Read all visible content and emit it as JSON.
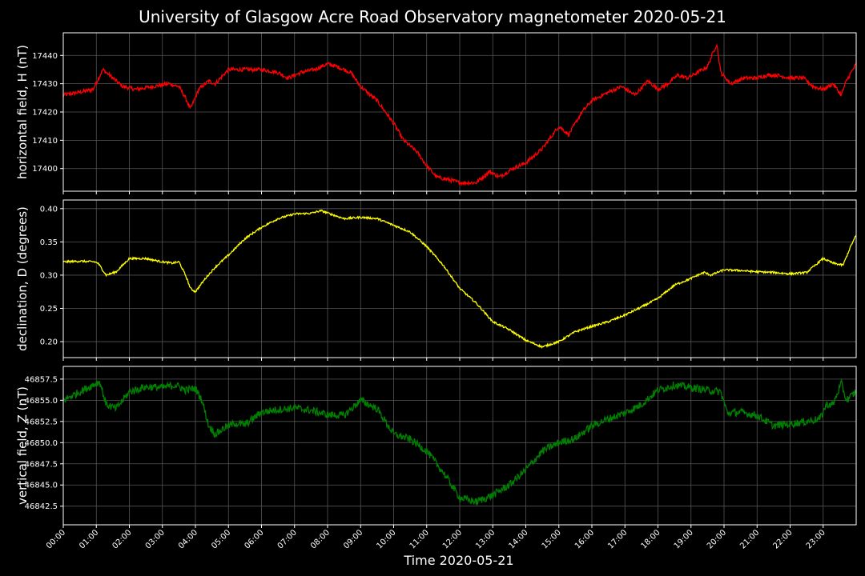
{
  "figure": {
    "title": "University of Glasgow Acre Road Observatory magnetometer 2020-05-21",
    "xlabel": "Time 2020-05-21",
    "background": "#000000",
    "grid_color": "#555555"
  },
  "chart_data": [
    {
      "type": "line",
      "ylabel": "horizontal field, H (nT)",
      "color": "#ff0000",
      "grid": true,
      "ylim": [
        17392,
        17448
      ],
      "yticks": [
        17400,
        17410,
        17420,
        17430,
        17440
      ],
      "ytick_labels": [
        "17400",
        "17410",
        "17420",
        "17430",
        "17440"
      ],
      "x_hours": [
        0,
        0.5,
        0.9,
        1.2,
        1.5,
        1.8,
        2.2,
        2.7,
        3.2,
        3.5,
        3.7,
        3.85,
        4.1,
        4.4,
        4.6,
        5,
        5.5,
        6,
        6.5,
        6.8,
        7.2,
        7.6,
        8,
        8.3,
        8.7,
        9,
        9.5,
        10,
        10.3,
        10.7,
        11,
        11.3,
        11.7,
        12,
        12.5,
        12.9,
        13.2,
        13.6,
        14,
        14.5,
        15,
        15.3,
        15.7,
        16,
        16.5,
        16.9,
        17.3,
        17.7,
        18,
        18.3,
        18.6,
        18.9,
        19.2,
        19.5,
        19.7,
        19.78,
        19.9,
        20.2,
        20.6,
        21,
        21.3,
        21.6,
        22,
        22.4,
        22.7,
        23,
        23.3,
        23.55,
        23.7,
        23.85,
        24
      ],
      "values": [
        17426,
        17427,
        17428,
        17435,
        17432,
        17429,
        17428,
        17429,
        17430,
        17429,
        17425,
        17421,
        17428,
        17431,
        17430,
        17435,
        17435,
        17435,
        17434,
        17432,
        17434,
        17435,
        17437,
        17436,
        17434,
        17429,
        17424,
        17416,
        17410,
        17406,
        17401,
        17397,
        17396,
        17395,
        17395,
        17399,
        17397,
        17400,
        17402,
        17407,
        17415,
        17412,
        17420,
        17424,
        17427,
        17429,
        17426,
        17431,
        17428,
        17430,
        17433,
        17432,
        17434,
        17436,
        17442,
        17444,
        17434,
        17430,
        17432,
        17432,
        17433,
        17433,
        17432,
        17432,
        17429,
        17428,
        17430,
        17426,
        17431,
        17434,
        17437
      ],
      "noise": 0.7
    },
    {
      "type": "line",
      "ylabel": "declination, D (degrees)",
      "color": "#ffff00",
      "grid": true,
      "ylim": [
        0.176,
        0.413
      ],
      "yticks": [
        0.2,
        0.25,
        0.3,
        0.35,
        0.4
      ],
      "ytick_labels": [
        "0.20",
        "0.25",
        "0.30",
        "0.35",
        "0.40"
      ],
      "x_hours": [
        0,
        0.5,
        0.95,
        1.05,
        1.3,
        1.6,
        2,
        2.5,
        3,
        3.3,
        3.5,
        3.7,
        3.85,
        4.0,
        4.3,
        4.6,
        5,
        5.5,
        6,
        6.5,
        7,
        7.5,
        7.8,
        8.2,
        8.5,
        9,
        9.5,
        10,
        10.5,
        11,
        11.5,
        12,
        12.5,
        13,
        13.5,
        14,
        14.5,
        15,
        15.5,
        16,
        16.5,
        17,
        17.5,
        18,
        18.5,
        19,
        19.2,
        19.4,
        19.6,
        20,
        20.5,
        21,
        21.5,
        22,
        22.5,
        23,
        23.3,
        23.6,
        23.85,
        24
      ],
      "values": [
        0.32,
        0.321,
        0.32,
        0.318,
        0.3,
        0.305,
        0.325,
        0.325,
        0.32,
        0.318,
        0.32,
        0.3,
        0.28,
        0.275,
        0.295,
        0.312,
        0.33,
        0.355,
        0.372,
        0.385,
        0.392,
        0.393,
        0.397,
        0.39,
        0.385,
        0.387,
        0.385,
        0.375,
        0.365,
        0.343,
        0.315,
        0.28,
        0.258,
        0.23,
        0.218,
        0.202,
        0.192,
        0.2,
        0.215,
        0.223,
        0.23,
        0.24,
        0.252,
        0.265,
        0.285,
        0.295,
        0.3,
        0.304,
        0.3,
        0.308,
        0.307,
        0.305,
        0.304,
        0.302,
        0.304,
        0.325,
        0.318,
        0.315,
        0.345,
        0.36
      ],
      "noise": 0.0015
    },
    {
      "type": "line",
      "ylabel": "vertical field, Z (nT)",
      "color": "#008000",
      "grid": true,
      "ylim": [
        46840.3,
        46859.0
      ],
      "yticks": [
        46842.5,
        46845.0,
        46847.5,
        46850.0,
        46852.5,
        46855.0,
        46857.5
      ],
      "ytick_labels": [
        "46842.5",
        "46845.0",
        "46847.5",
        "46850.0",
        "46852.5",
        "46855.0",
        "46857.5"
      ],
      "x_hours": [
        0,
        0.5,
        1.0,
        1.1,
        1.3,
        1.6,
        2,
        2.5,
        3,
        3.4,
        3.7,
        4.0,
        4.2,
        4.4,
        4.6,
        4.9,
        5.2,
        5.5,
        6,
        6.5,
        7,
        7.5,
        8,
        8.5,
        9,
        9.5,
        10,
        10.5,
        11,
        11.5,
        12,
        12.5,
        13,
        13.5,
        14,
        14.5,
        15,
        15.5,
        16,
        16.5,
        17,
        17.5,
        18,
        18.5,
        19,
        19.5,
        19.9,
        20.1,
        20.5,
        21,
        21.5,
        22,
        22.5,
        22.9,
        23.1,
        23.3,
        23.55,
        23.7,
        24
      ],
      "values": [
        46855,
        46856,
        46857,
        46857.2,
        46854.5,
        46854.0,
        46856,
        46856.6,
        46856.5,
        46856.8,
        46856.2,
        46856.4,
        46855,
        46852,
        46851,
        46851.8,
        46852.3,
        46852.1,
        46853.6,
        46853.9,
        46854.1,
        46853.8,
        46853.3,
        46853.2,
        46855,
        46854,
        46851,
        46850.4,
        46849,
        46846.5,
        46843.5,
        46843,
        46843.8,
        46845,
        46846.8,
        46849,
        46850,
        46850.5,
        46852,
        46852.8,
        46853.5,
        46854.5,
        46856.2,
        46856.8,
        46856.5,
        46856.2,
        46856,
        46853.5,
        46853.6,
        46853.2,
        46852,
        46852.2,
        46852.5,
        46852.8,
        46854.5,
        46854.5,
        46857,
        46855,
        46856
      ],
      "noise": 0.45
    }
  ],
  "x_axis": {
    "xlim_hours": [
      0,
      24
    ],
    "tick_hours": [
      0,
      1,
      2,
      3,
      4,
      5,
      6,
      7,
      8,
      9,
      10,
      11,
      12,
      13,
      14,
      15,
      16,
      17,
      18,
      19,
      20,
      21,
      22,
      23
    ],
    "tick_labels": [
      "00:00",
      "01:00",
      "02:00",
      "03:00",
      "04:00",
      "05:00",
      "06:00",
      "07:00",
      "08:00",
      "09:00",
      "10:00",
      "11:00",
      "12:00",
      "13:00",
      "14:00",
      "15:00",
      "16:00",
      "17:00",
      "18:00",
      "19:00",
      "20:00",
      "21:00",
      "22:00",
      "23:00"
    ]
  }
}
